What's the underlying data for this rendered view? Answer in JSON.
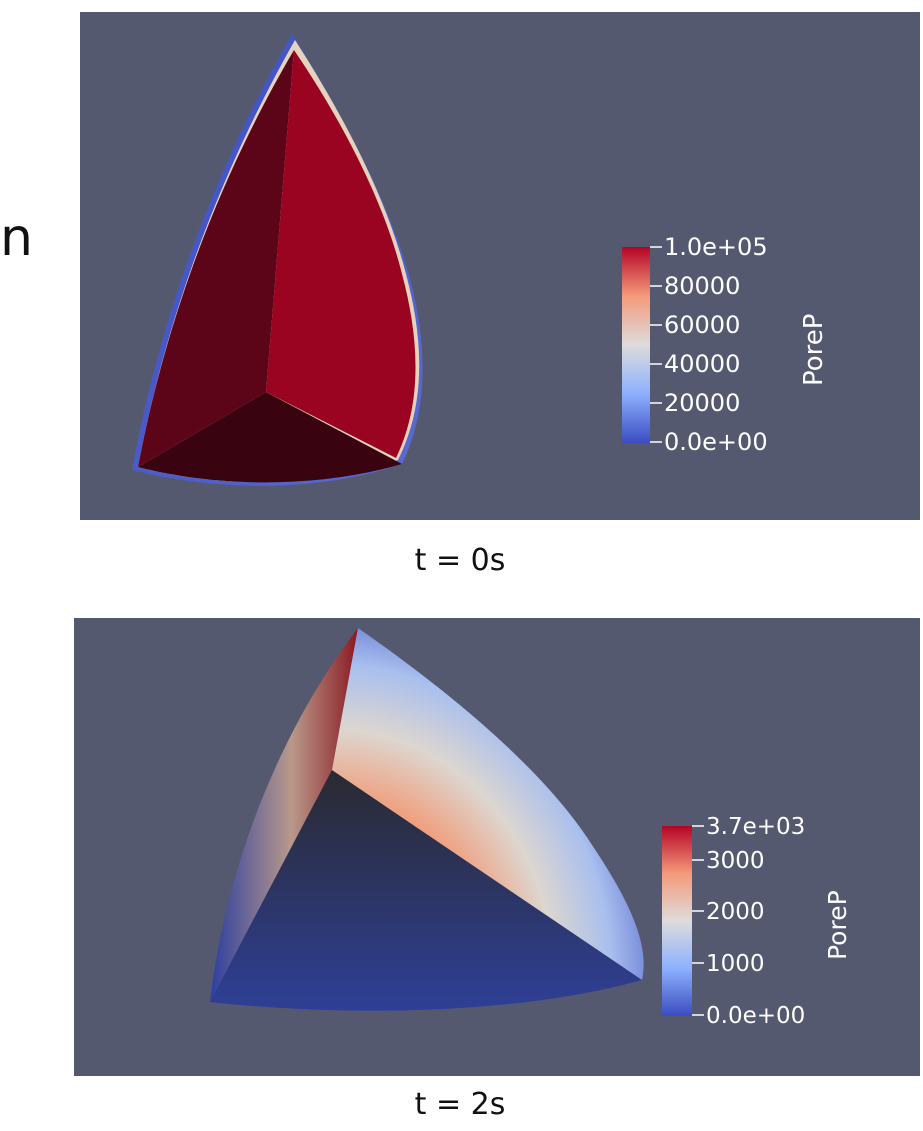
{
  "stray_glyph": "n",
  "panels": [
    {
      "caption": "t = 0s",
      "scalar": "PoreP",
      "ticks": [
        "1.0e+05",
        "80000",
        "60000",
        "40000",
        "20000",
        "0.0e+00"
      ]
    },
    {
      "caption": "t = 2s",
      "scalar": "PoreP",
      "ticks": [
        "3.7e+03",
        "3000",
        "2000",
        "1000",
        "0.0e+00"
      ]
    }
  ],
  "colors": {
    "background": "#545970",
    "colormap_high": "#b40426",
    "colormap_mid": "#dddcdc",
    "colormap_low": "#3b4cc0"
  }
}
